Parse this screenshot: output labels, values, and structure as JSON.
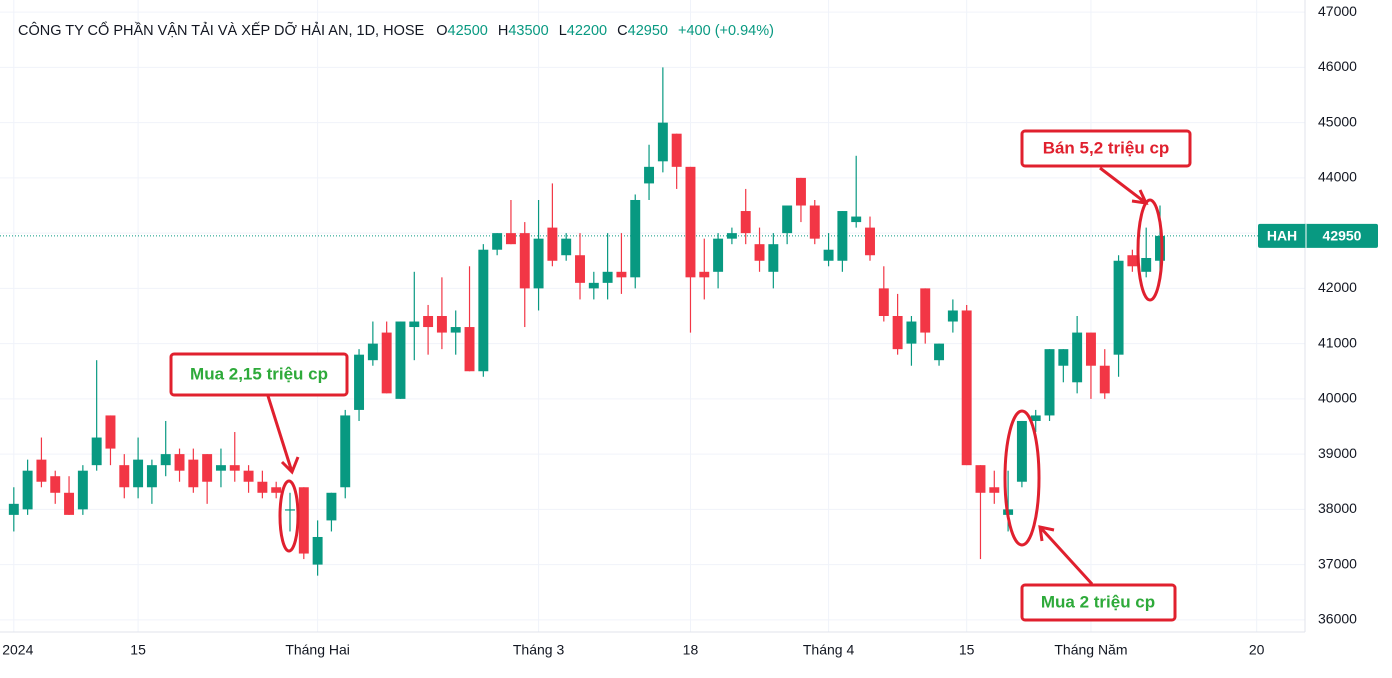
{
  "chart_data": {
    "type": "candlestick",
    "title": "CÔNG TY CỔ PHẦN VẬN TẢI VÀ XẾP DỠ HẢI AN, 1D, HOSE",
    "ohlc_labels": [
      "O",
      "H",
      "L",
      "C"
    ],
    "change": "+400 (+0.94%)",
    "symbol": "HAH",
    "up_color": "#089981",
    "down_color": "#f23645",
    "open": [
      37900,
      38000,
      38900,
      38600,
      38300,
      38000,
      38800,
      39700,
      38800,
      38400,
      38400,
      38800,
      39000,
      38900,
      39000,
      38700,
      38800,
      38700,
      38500,
      38400,
      38000,
      38400,
      37000,
      37800,
      38400,
      39800,
      40700,
      41200,
      40000,
      41300,
      41500,
      41500,
      41200,
      41300,
      40500,
      42700,
      43000,
      43000,
      42000,
      43100,
      42600,
      42600,
      42000,
      42100,
      42300,
      42200,
      43900,
      44300,
      44800,
      44200,
      42300,
      42300,
      42900,
      43400,
      42800,
      42300,
      43000,
      44000,
      43500,
      42500,
      42500,
      43200,
      43100,
      42000,
      41500,
      41000,
      42000,
      40700,
      41400,
      41600,
      38800,
      38400,
      37900,
      38500,
      39600,
      39700,
      40600,
      40300,
      41200,
      40600,
      40800,
      42600,
      42300,
      42500
    ],
    "high": [
      38400,
      38900,
      39300,
      38700,
      38600,
      38800,
      40700,
      39700,
      39000,
      39300,
      38900,
      39600,
      39100,
      39100,
      39000,
      39100,
      39400,
      38800,
      38700,
      38500,
      38300,
      38400,
      37800,
      38300,
      39800,
      40900,
      41400,
      41400,
      41400,
      42300,
      41700,
      42200,
      41600,
      42400,
      42800,
      43000,
      43600,
      43200,
      43600,
      43900,
      43000,
      43000,
      42300,
      43000,
      43000,
      43700,
      44600,
      46000,
      44800,
      44200,
      42900,
      43000,
      43100,
      43800,
      43100,
      43000,
      43500,
      44000,
      43600,
      43000,
      43400,
      44400,
      43300,
      42400,
      41900,
      41500,
      42000,
      41000,
      41800,
      41700,
      38800,
      38700,
      38700,
      39600,
      39800,
      40900,
      40900,
      41500,
      41200,
      40900,
      42600,
      42700,
      43100,
      43500
    ],
    "low": [
      37600,
      37900,
      38400,
      38100,
      37900,
      37900,
      38700,
      38800,
      38200,
      38200,
      38100,
      38600,
      38500,
      38300,
      38100,
      38400,
      38500,
      38300,
      38200,
      38200,
      37600,
      37100,
      36800,
      37600,
      38200,
      39600,
      40600,
      40100,
      40000,
      40700,
      40800,
      40900,
      40800,
      40500,
      40400,
      42600,
      42800,
      41300,
      41600,
      42400,
      42500,
      41800,
      41800,
      41800,
      41900,
      42000,
      43600,
      44100,
      43800,
      41200,
      41800,
      42000,
      42800,
      42800,
      42300,
      42000,
      42800,
      43200,
      42800,
      42400,
      42300,
      43100,
      42500,
      41400,
      40800,
      40600,
      41000,
      40600,
      41200,
      38800,
      37100,
      38100,
      37600,
      38400,
      39400,
      39600,
      40300,
      40100,
      40000,
      40000,
      40400,
      42300,
      42200,
      42200
    ],
    "close": [
      38100,
      38700,
      38500,
      38300,
      37900,
      38700,
      39300,
      39100,
      38400,
      38900,
      38800,
      39000,
      38700,
      38400,
      38500,
      38800,
      38700,
      38500,
      38300,
      38300,
      38000,
      37200,
      37500,
      38300,
      39700,
      40800,
      41000,
      40100,
      41400,
      41400,
      41300,
      41200,
      41300,
      40500,
      42700,
      43000,
      42800,
      42000,
      42900,
      42500,
      42900,
      42100,
      42100,
      42300,
      42200,
      43600,
      44200,
      45000,
      44200,
      42200,
      42200,
      42900,
      43000,
      43000,
      42500,
      42800,
      43500,
      43500,
      42900,
      42700,
      43400,
      43300,
      42600,
      41500,
      40900,
      41400,
      41200,
      41000,
      41600,
      38800,
      38300,
      38300,
      38000,
      39600,
      39700,
      40900,
      40900,
      41200,
      40600,
      40100,
      42500,
      42400,
      42550,
      42950
    ],
    "xlim": [
      -1,
      93.5
    ],
    "xticks": [
      {
        "value": 0,
        "label": "2024"
      },
      {
        "value": 9,
        "label": "15"
      },
      {
        "value": 22,
        "label": "Tháng Hai"
      },
      {
        "value": 38,
        "label": "Tháng 3"
      },
      {
        "value": 49,
        "label": "18"
      },
      {
        "value": 59,
        "label": "Tháng 4"
      },
      {
        "value": 69,
        "label": "15"
      },
      {
        "value": 78,
        "label": "Tháng Năm"
      },
      {
        "value": 90,
        "label": "20"
      }
    ],
    "ylim": [
      35780,
      47220
    ],
    "yticks": [
      36000,
      37000,
      38000,
      39000,
      40000,
      41000,
      42000,
      43000,
      44000,
      45000,
      46000,
      47000
    ],
    "grid": true,
    "annotations": [
      "Mua 2,15 triệu cp",
      "Bán 5,2 triệu cp",
      "Mua 2 triệu cp"
    ]
  }
}
